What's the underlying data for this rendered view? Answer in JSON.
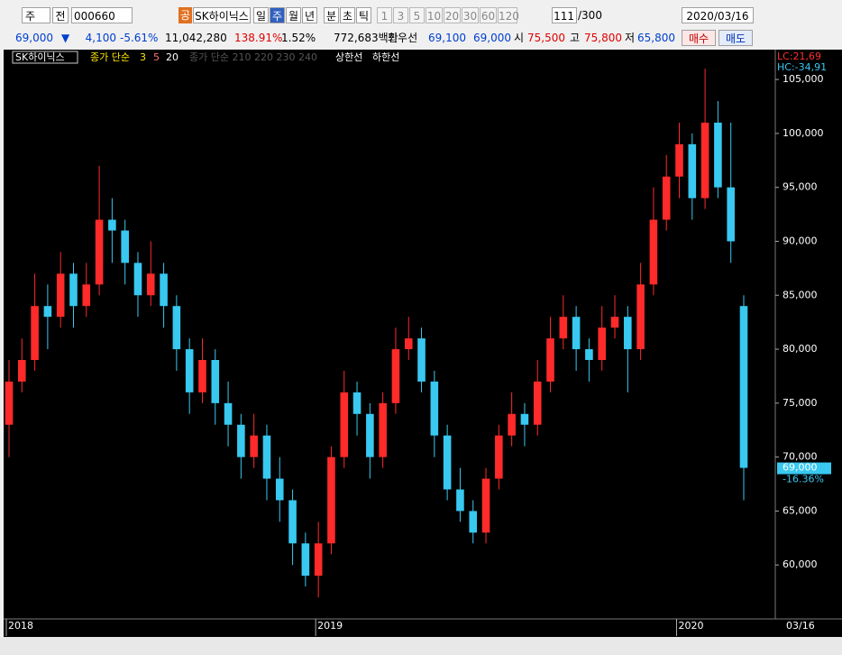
{
  "toolbar": {
    "period": "주",
    "mode": "전",
    "code": "000660",
    "badge": "공",
    "name": "SK하이닉스",
    "intervals": [
      "일",
      "주",
      "월",
      "년",
      "분",
      "초",
      "틱"
    ],
    "counts": [
      "1",
      "3",
      "5",
      "10",
      "20",
      "30",
      "60",
      "120"
    ],
    "range": "111",
    "range_max": "/300",
    "date": "2020/03/16"
  },
  "quote": {
    "price": "69,000",
    "arrow": "▼",
    "change": "4,100",
    "change_pct": "-5.61%",
    "volume": "11,042,280",
    "volume_ratio": "138.91%",
    "turnover": "1.52%",
    "amount": "772,683백만",
    "best_label": "최우선",
    "ask": "69,100",
    "bid": "69,000",
    "open_label": "시",
    "open": "75,500",
    "high_label": "고",
    "high": "75,800",
    "low_label": "저",
    "low": "65,800",
    "buy": "매수",
    "sell": "매도"
  },
  "chart_data": {
    "type": "candlestick",
    "legend": {
      "series_name": "SK하이닉스",
      "ma_label": "종가 단순",
      "ma_periods": [
        "3",
        "5",
        "20"
      ],
      "bb_label": "종가 단순 210 220 230 240",
      "upper_band": "상한선",
      "lower_band": "하한선"
    },
    "categories": [
      "2018",
      null,
      null,
      null,
      null,
      null,
      null,
      null,
      null,
      null,
      null,
      null,
      null,
      null,
      null,
      null,
      null,
      null,
      null,
      null,
      null,
      null,
      null,
      null,
      "2019",
      null,
      null,
      null,
      null,
      null,
      null,
      null,
      null,
      null,
      null,
      null,
      null,
      null,
      null,
      null,
      null,
      null,
      null,
      null,
      null,
      null,
      null,
      null,
      null,
      null,
      null,
      null,
      "2020",
      null,
      null,
      null,
      null,
      null
    ],
    "open": [
      73000,
      77000,
      79000,
      84000,
      83000,
      87000,
      84000,
      86000,
      92000,
      91000,
      88000,
      85000,
      87000,
      84000,
      80000,
      76000,
      79000,
      75000,
      73000,
      70000,
      72000,
      68000,
      66000,
      62000,
      59000,
      62000,
      70000,
      76000,
      74000,
      70000,
      75000,
      80000,
      81000,
      77000,
      72000,
      67000,
      65000,
      63000,
      68000,
      72000,
      74000,
      73000,
      77000,
      81000,
      83000,
      80000,
      79000,
      82000,
      83000,
      80000,
      86000,
      92000,
      96000,
      99000,
      94000,
      101000,
      95000,
      84000
    ],
    "high": [
      79000,
      81000,
      87000,
      86000,
      89000,
      88000,
      88000,
      97000,
      94000,
      92000,
      89000,
      90000,
      88000,
      85000,
      81000,
      81000,
      80000,
      77000,
      74000,
      74000,
      73000,
      70000,
      67000,
      63000,
      64000,
      71000,
      78000,
      77000,
      75000,
      76000,
      82000,
      83000,
      82000,
      78000,
      73000,
      69000,
      66000,
      69000,
      73000,
      76000,
      75000,
      79000,
      83000,
      85000,
      84000,
      81000,
      84000,
      85000,
      84000,
      88000,
      95000,
      98000,
      101000,
      100000,
      106000,
      103000,
      101000,
      85000
    ],
    "low": [
      70000,
      76000,
      78000,
      80000,
      82000,
      82000,
      83000,
      85000,
      88000,
      86000,
      83000,
      84000,
      82000,
      78000,
      74000,
      75000,
      73000,
      71000,
      68000,
      69000,
      66000,
      64000,
      60000,
      58000,
      57000,
      61000,
      69000,
      72000,
      68000,
      69000,
      74000,
      79000,
      76000,
      70000,
      66000,
      64000,
      62000,
      62000,
      67000,
      71000,
      71000,
      72000,
      76000,
      80000,
      78000,
      77000,
      78000,
      81000,
      76000,
      79000,
      85000,
      91000,
      94000,
      92000,
      93000,
      94000,
      88000,
      66000
    ],
    "close": [
      77000,
      79000,
      84000,
      83000,
      87000,
      84000,
      86000,
      92000,
      91000,
      88000,
      85000,
      87000,
      84000,
      80000,
      76000,
      79000,
      75000,
      73000,
      70000,
      72000,
      68000,
      66000,
      62000,
      59000,
      62000,
      70000,
      76000,
      74000,
      70000,
      75000,
      80000,
      81000,
      77000,
      72000,
      67000,
      65000,
      63000,
      68000,
      72000,
      74000,
      73000,
      77000,
      81000,
      83000,
      80000,
      79000,
      82000,
      83000,
      80000,
      86000,
      92000,
      96000,
      99000,
      94000,
      101000,
      95000,
      90000,
      69000
    ],
    "up_color": "#ff2a2a",
    "down_color": "#38c8f0",
    "ylim": [
      55000,
      107600
    ],
    "yticks": [
      {
        "value": 60000,
        "label": "60,000"
      },
      {
        "value": 65000,
        "label": "65,000"
      },
      {
        "value": 70000,
        "label": "70,000"
      },
      {
        "value": 75000,
        "label": "75,000"
      },
      {
        "value": 80000,
        "label": "80,000"
      },
      {
        "value": 85000,
        "label": "85,000"
      },
      {
        "value": 90000,
        "label": "90,000"
      },
      {
        "value": 95000,
        "label": "95,000"
      },
      {
        "value": 100000,
        "label": "100,000"
      },
      {
        "value": 105000,
        "label": "105,000"
      }
    ],
    "grid": false,
    "lc_label": "LC:21,69",
    "hc_label": "HC:-34,91",
    "last_price_label": "69,000",
    "last_change_label": "-16.36%",
    "date_label": "03/16"
  }
}
